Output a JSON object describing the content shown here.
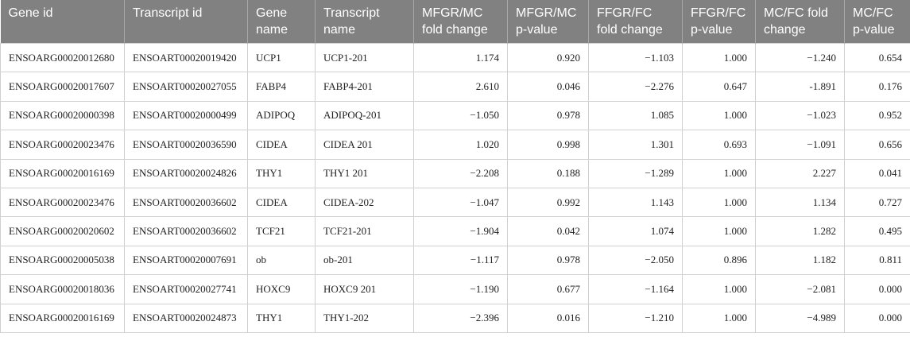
{
  "table": {
    "header": [
      "Gene id",
      "Transcript id",
      "Gene name",
      "Transcript name",
      "MFGR/MC fold change",
      "MFGR/MC p-value",
      "FFGR/FC fold change",
      "FFGR/FC p-value",
      "MC/FC fold change",
      "MC/FC p-value"
    ],
    "rows": [
      [
        "ENSOARG00020012680",
        "ENSOART00020019420",
        "UCP1",
        "UCP1-201",
        "1.174",
        "0.920",
        "−1.103",
        "1.000",
        "−1.240",
        "0.654"
      ],
      [
        "ENSOARG00020017607",
        "ENSOART00020027055",
        "FABP4",
        "FABP4-201",
        "2.610",
        "0.046",
        "−2.276",
        "0.647",
        "-1.891",
        "0.176"
      ],
      [
        "ENSOARG00020000398",
        "ENSOART00020000499",
        "ADIPOQ",
        "ADIPOQ-201",
        "−1.050",
        "0.978",
        "1.085",
        "1.000",
        "−1.023",
        "0.952"
      ],
      [
        "ENSOARG00020023476",
        "ENSOART00020036590",
        "CIDEA",
        "CIDEA 201",
        "1.020",
        "0.998",
        "1.301",
        "0.693",
        "−1.091",
        "0.656"
      ],
      [
        "ENSOARG00020016169",
        "ENSOART00020024826",
        "THY1",
        "THY1 201",
        "−2.208",
        "0.188",
        "−1.289",
        "1.000",
        "2.227",
        "0.041"
      ],
      [
        "ENSOARG00020023476",
        "ENSOART00020036602",
        "CIDEA",
        "CIDEA-202",
        "−1.047",
        "0.992",
        "1.143",
        "1.000",
        "1.134",
        "0.727"
      ],
      [
        "ENSOARG00020020602",
        "ENSOART00020036602",
        "TCF21",
        "TCF21-201",
        "−1.904",
        "0.042",
        "1.074",
        "1.000",
        "1.282",
        "0.495"
      ],
      [
        "ENSOARG00020005038",
        "ENSOART00020007691",
        "ob",
        "ob-201",
        "−1.117",
        "0.978",
        "−2.050",
        "0.896",
        "1.182",
        "0.811"
      ],
      [
        "ENSOARG00020018036",
        "ENSOART00020027741",
        "HOXC9",
        "HOXC9 201",
        "−1.190",
        "0.677",
        "−1.164",
        "1.000",
        "−2.081",
        "0.000"
      ],
      [
        "ENSOARG00020016169",
        "ENSOART00020024873",
        "THY1",
        "THY1-202",
        "−2.396",
        "0.016",
        "−1.210",
        "1.000",
        "−4.989",
        "0.000"
      ]
    ]
  }
}
